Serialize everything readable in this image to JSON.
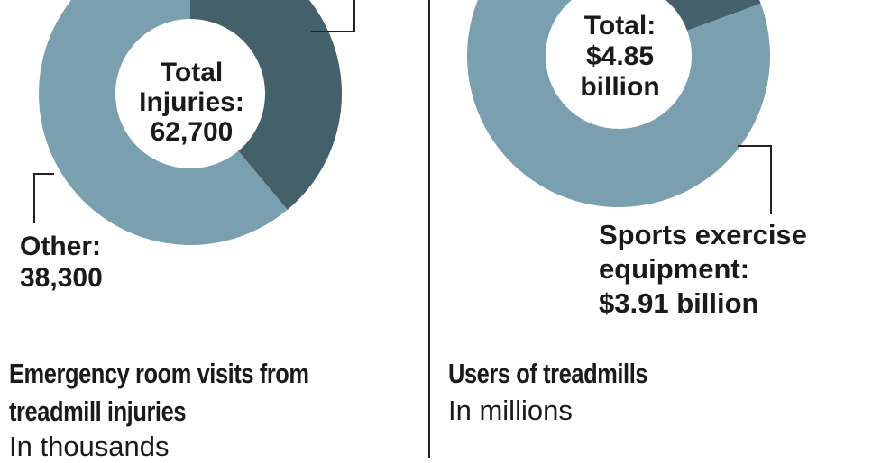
{
  "chart_data": [
    {
      "type": "pie",
      "title": "Emergency room visits from treadmill injuries",
      "subtitle": "In thousands",
      "center_label": [
        "Total",
        "Injuries:",
        "62,700"
      ],
      "total": 62700,
      "slices": [
        {
          "label": "",
          "value": 24400,
          "color": "#44616b"
        },
        {
          "label": "Other:",
          "value_label": "38,300",
          "value": 38300,
          "color": "#7aa0b0"
        }
      ]
    },
    {
      "type": "pie",
      "title": "Users of treadmills",
      "subtitle": "In millions",
      "center_label": [
        "Total:",
        "$4.85",
        "billion"
      ],
      "total": 4.85,
      "slices": [
        {
          "label": "",
          "value": 0.94,
          "color": "#44616b"
        },
        {
          "label": "Sports exercise equipment:",
          "value_label": "$3.91 billion",
          "value": 3.91,
          "color": "#7aa0b0"
        }
      ]
    }
  ]
}
